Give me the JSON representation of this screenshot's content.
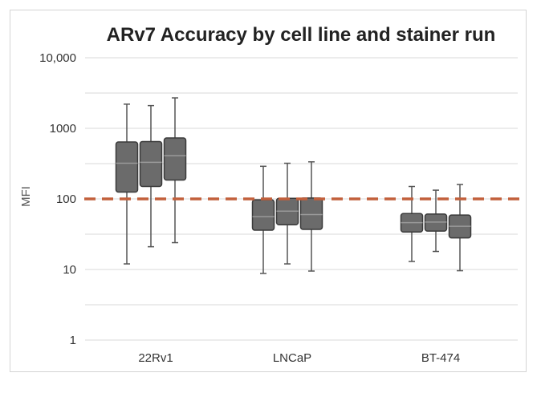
{
  "chart_data": {
    "type": "box",
    "title": "ARv7 Accuracy by cell line and stainer run",
    "ylabel": "MFI",
    "xlabel": "",
    "yscale": "log",
    "ylim": [
      1,
      10000
    ],
    "yticks": [
      {
        "value": 1,
        "label": "1"
      },
      {
        "value": 10,
        "label": "10"
      },
      {
        "value": 100,
        "label": "100"
      },
      {
        "value": 1000,
        "label": "1000"
      },
      {
        "value": 10000,
        "label": "10,000"
      }
    ],
    "grid": true,
    "legend": "none",
    "categories": [
      "22Rv1",
      "LNCaP",
      "BT-474"
    ],
    "groups": [
      {
        "category": "22Rv1",
        "boxes": [
          {
            "min": 12,
            "q1": 125,
            "median": 320,
            "q3": 640,
            "max": 2200
          },
          {
            "min": 21,
            "q1": 150,
            "median": 330,
            "q3": 650,
            "max": 2100
          },
          {
            "min": 24,
            "q1": 185,
            "median": 410,
            "q3": 730,
            "max": 2700
          }
        ]
      },
      {
        "category": "LNCaP",
        "boxes": [
          {
            "min": 8.8,
            "q1": 36,
            "median": 56,
            "q3": 97,
            "max": 290
          },
          {
            "min": 12,
            "q1": 43,
            "median": 67,
            "q3": 102,
            "max": 320
          },
          {
            "min": 9.5,
            "q1": 37,
            "median": 60,
            "q3": 103,
            "max": 335
          }
        ]
      },
      {
        "category": "BT-474",
        "boxes": [
          {
            "min": 13,
            "q1": 34,
            "median": 46,
            "q3": 62,
            "max": 150
          },
          {
            "min": 18,
            "q1": 35,
            "median": 47,
            "q3": 61,
            "max": 133
          },
          {
            "min": 9.6,
            "q1": 28,
            "median": 41,
            "q3": 59,
            "max": 160
          }
        ]
      }
    ],
    "reference_line": {
      "value": 100,
      "style": "dashed",
      "color": "#c2603c"
    },
    "colors": {
      "box_fill": "#6b6b6b",
      "box_stroke": "#3a3a3a",
      "grid": "#d9d9d9"
    }
  }
}
